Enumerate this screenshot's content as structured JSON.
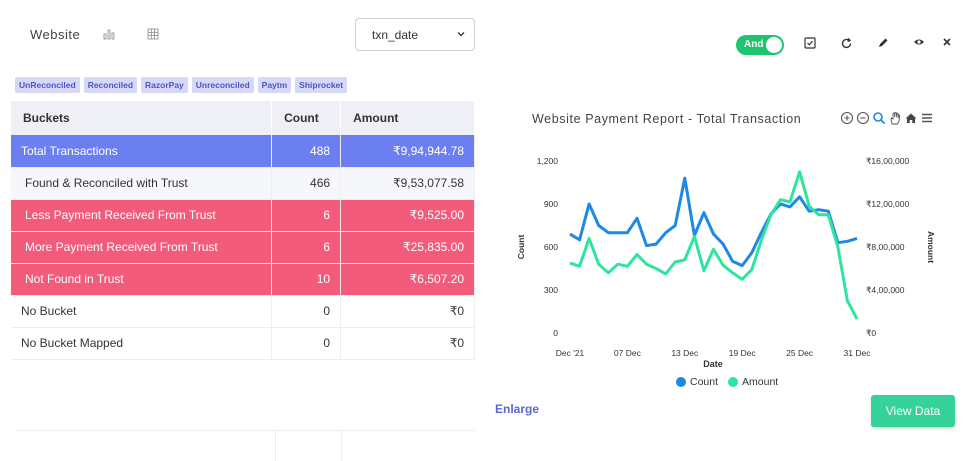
{
  "header": {
    "title": "Website",
    "date_field": "txn_date",
    "toggle_label": "And"
  },
  "tags": [
    "UnReconciled",
    "Reconciled",
    "RazorPay",
    "Unreconciled",
    "Paytm",
    "Shiprocket"
  ],
  "table": {
    "headers": [
      "Buckets",
      "Count",
      "Amount"
    ],
    "rows": [
      {
        "bucket": "Total Transactions",
        "count": "488",
        "amount": "₹9,94,944.78"
      },
      {
        "bucket": "Found & Reconciled with Trust",
        "count": "466",
        "amount": "₹9,53,077.58"
      },
      {
        "bucket": "Less Payment Received From Trust",
        "count": "6",
        "amount": "₹9,525.00"
      },
      {
        "bucket": "More Payment Received From Trust",
        "count": "6",
        "amount": "₹25,835.00"
      },
      {
        "bucket": "Not Found in Trust",
        "count": "10",
        "amount": "₹6,507.20"
      },
      {
        "bucket": "No Bucket",
        "count": "0",
        "amount": "₹0"
      },
      {
        "bucket": "No Bucket Mapped",
        "count": "0",
        "amount": "₹0"
      }
    ]
  },
  "chart_data": {
    "type": "line",
    "title": "Website Payment Report - Total Transaction",
    "xlabel": "Date",
    "ylabel": "Count",
    "y2label": "Amount",
    "x_ticks": [
      "Dec '21",
      "07 Dec",
      "13 Dec",
      "19 Dec",
      "25 Dec",
      "31 Dec"
    ],
    "y_ticks": [
      "0",
      "300",
      "600",
      "900",
      "1,200"
    ],
    "y2_ticks": [
      "₹0",
      "₹4,00,000",
      "₹8,00,000",
      "₹12,00,000",
      "₹16,00,000"
    ],
    "ylim": [
      0,
      1200
    ],
    "y2lim": [
      0,
      1600000
    ],
    "x_range": [
      1,
      31
    ],
    "legend_position": "bottom",
    "series": [
      {
        "name": "Count",
        "color": "#1e88e5",
        "axis": "left",
        "x": [
          1,
          2,
          3,
          4,
          5,
          6,
          7,
          8,
          9,
          10,
          11,
          12,
          13,
          14,
          15,
          16,
          17,
          18,
          19,
          20,
          21,
          22,
          23,
          24,
          25,
          26,
          27,
          28,
          29,
          30,
          31
        ],
        "values": [
          690,
          650,
          900,
          750,
          700,
          700,
          700,
          800,
          610,
          620,
          700,
          750,
          1080,
          680,
          840,
          690,
          620,
          500,
          470,
          560,
          700,
          830,
          900,
          880,
          950,
          850,
          860,
          850,
          630,
          640,
          660
        ]
      },
      {
        "name": "Amount",
        "color": "#2ee59d",
        "axis": "right",
        "x": [
          1,
          2,
          3,
          4,
          5,
          6,
          7,
          8,
          9,
          10,
          11,
          12,
          13,
          14,
          15,
          16,
          17,
          18,
          19,
          20,
          21,
          22,
          23,
          24,
          25,
          26,
          27,
          28,
          29,
          30,
          31
        ],
        "values": [
          650000,
          620000,
          880000,
          640000,
          560000,
          640000,
          620000,
          730000,
          640000,
          600000,
          550000,
          660000,
          680000,
          900000,
          580000,
          780000,
          630000,
          560000,
          500000,
          590000,
          860000,
          1100000,
          1240000,
          1220000,
          1500000,
          1180000,
          1100000,
          1100000,
          800000,
          300000,
          130000
        ]
      }
    ]
  },
  "actions": {
    "enlarge": "Enlarge",
    "view_data": "View Data"
  },
  "colors": {
    "accent_blue": "#6b7ff0",
    "alert_red": "#f25b7a",
    "success_green": "#35d39a"
  }
}
